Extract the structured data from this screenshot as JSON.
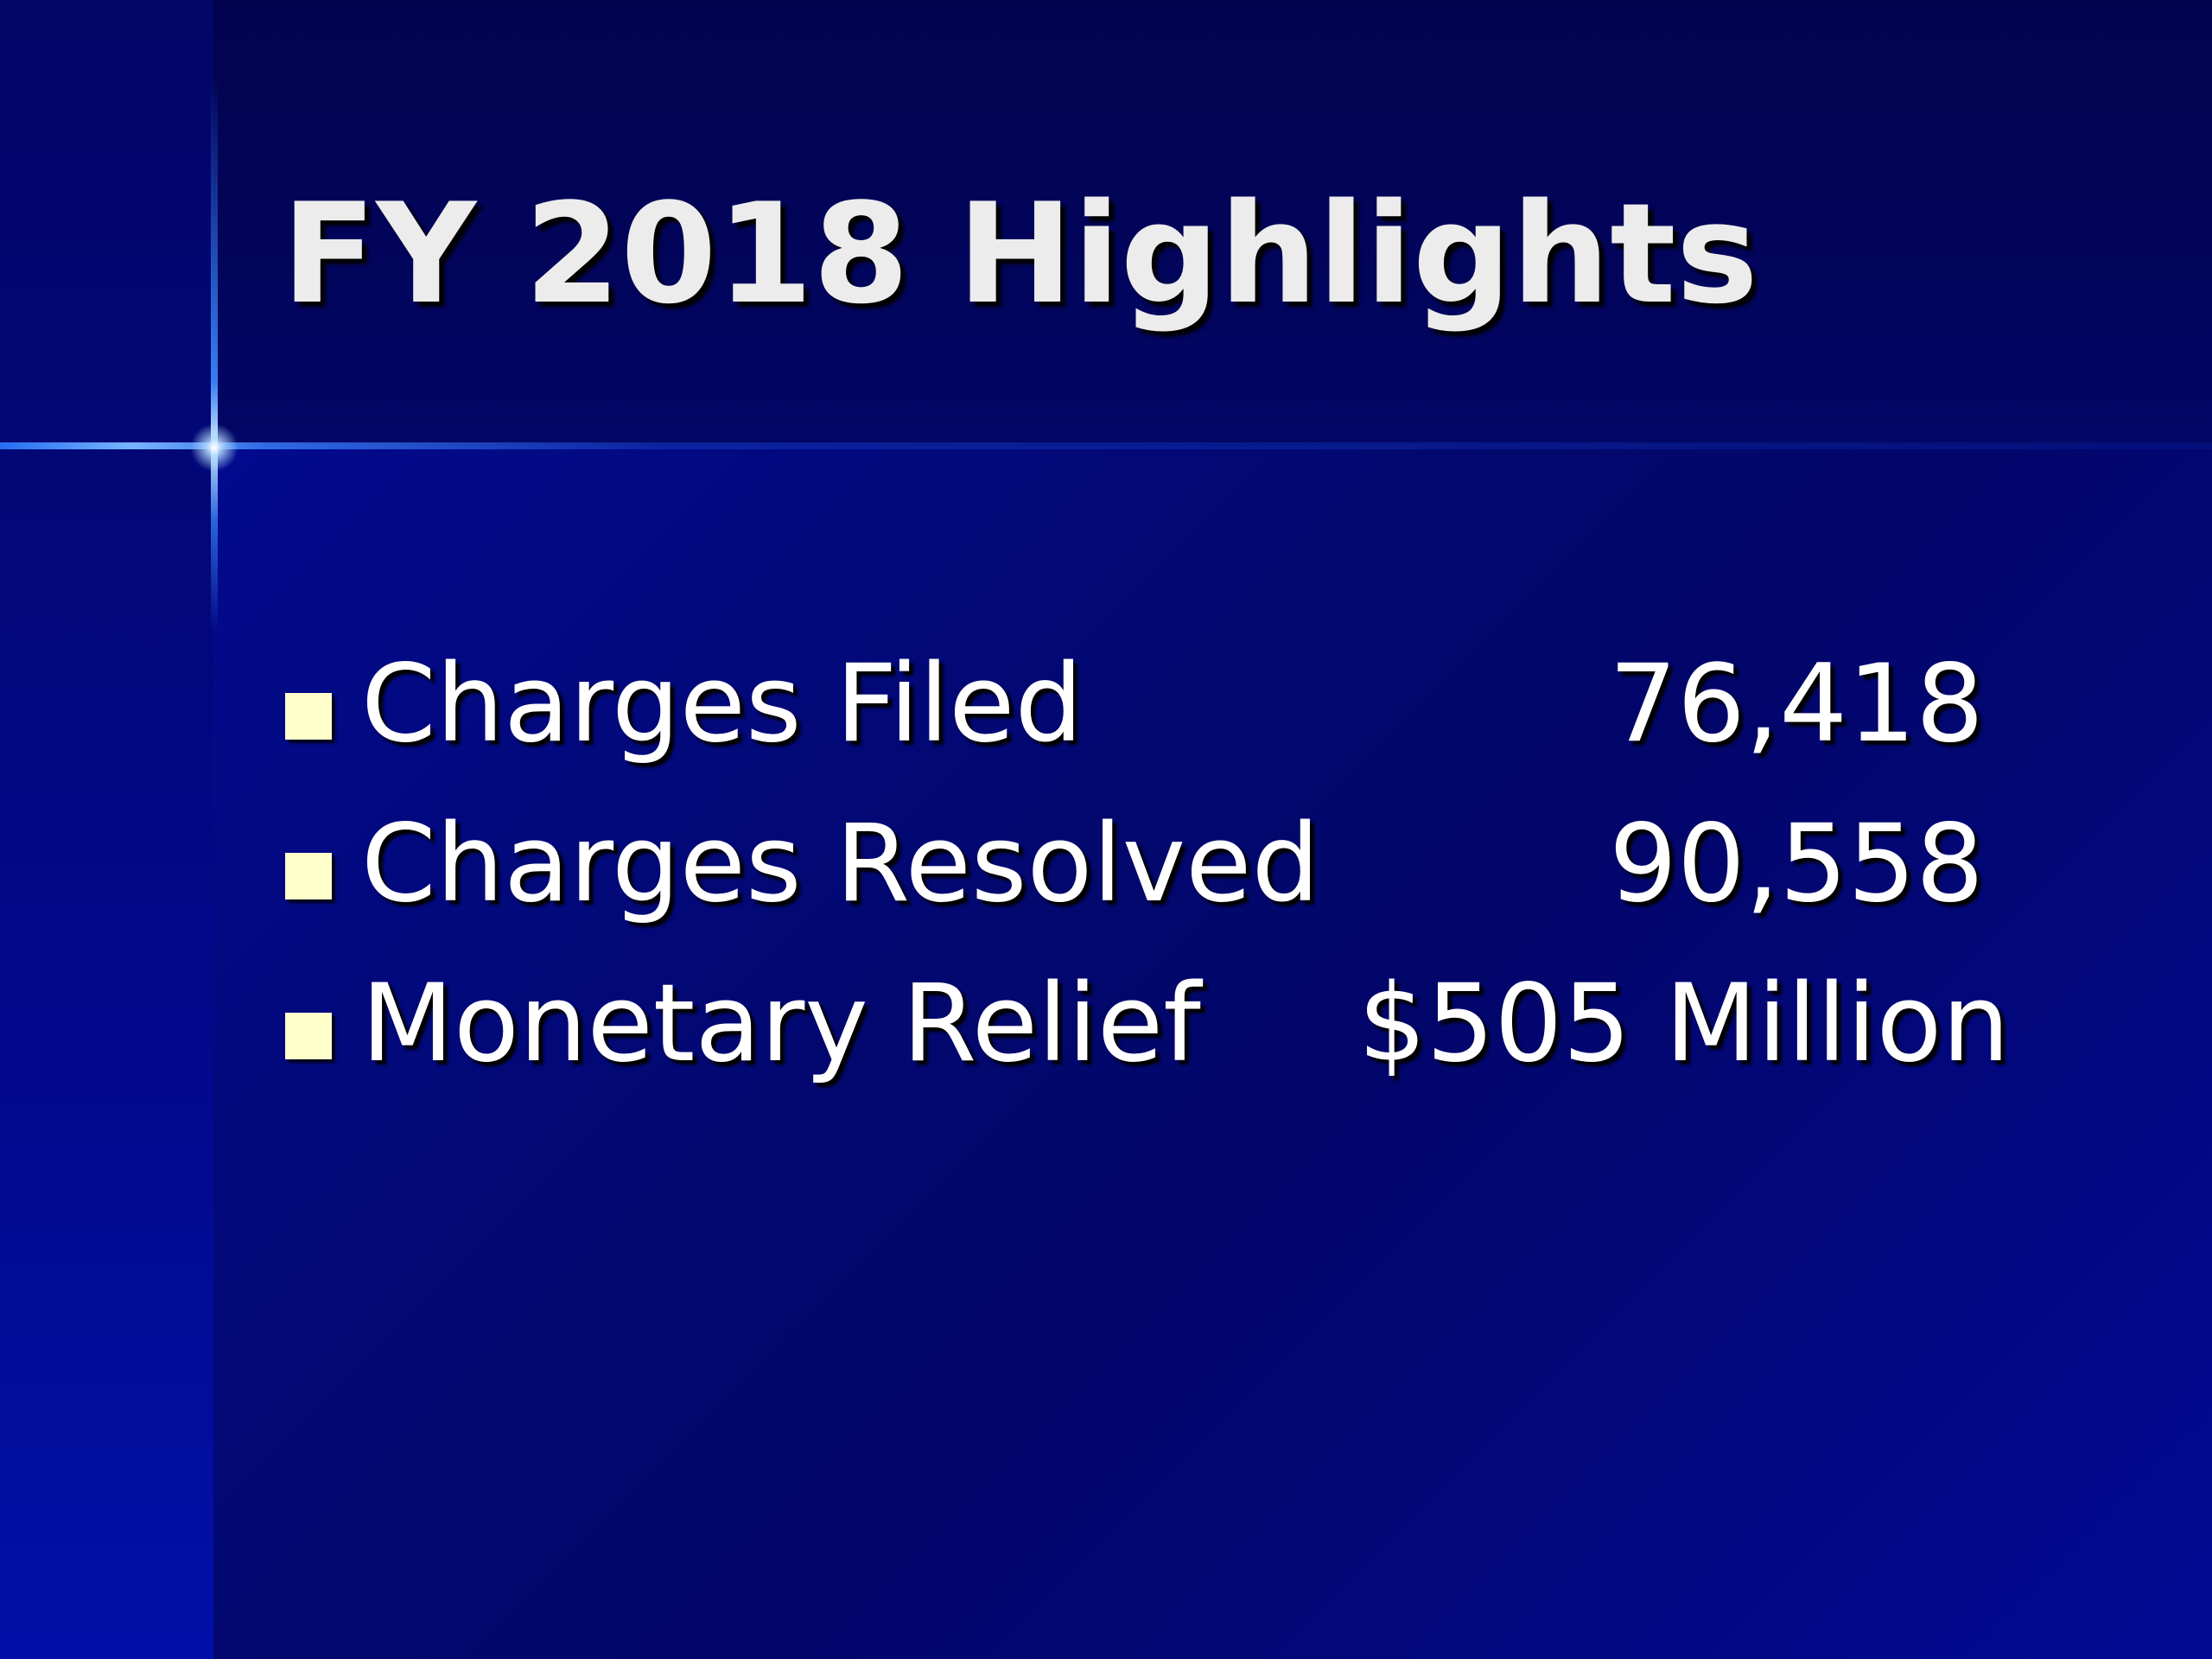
{
  "slide": {
    "title": "FY 2018 Highlights",
    "bullets": [
      {
        "label": "Charges Filed",
        "value": "76,418"
      },
      {
        "label": "Charges Resolved",
        "value": "90,558"
      },
      {
        "label": "Monetary Relief",
        "value": "$505 Million"
      }
    ]
  },
  "colors": {
    "background": "#020a80",
    "header": "#02034f",
    "title_text": "#ececec",
    "body_text": "#ffffff",
    "bullet_marker": "#ffffcc"
  }
}
